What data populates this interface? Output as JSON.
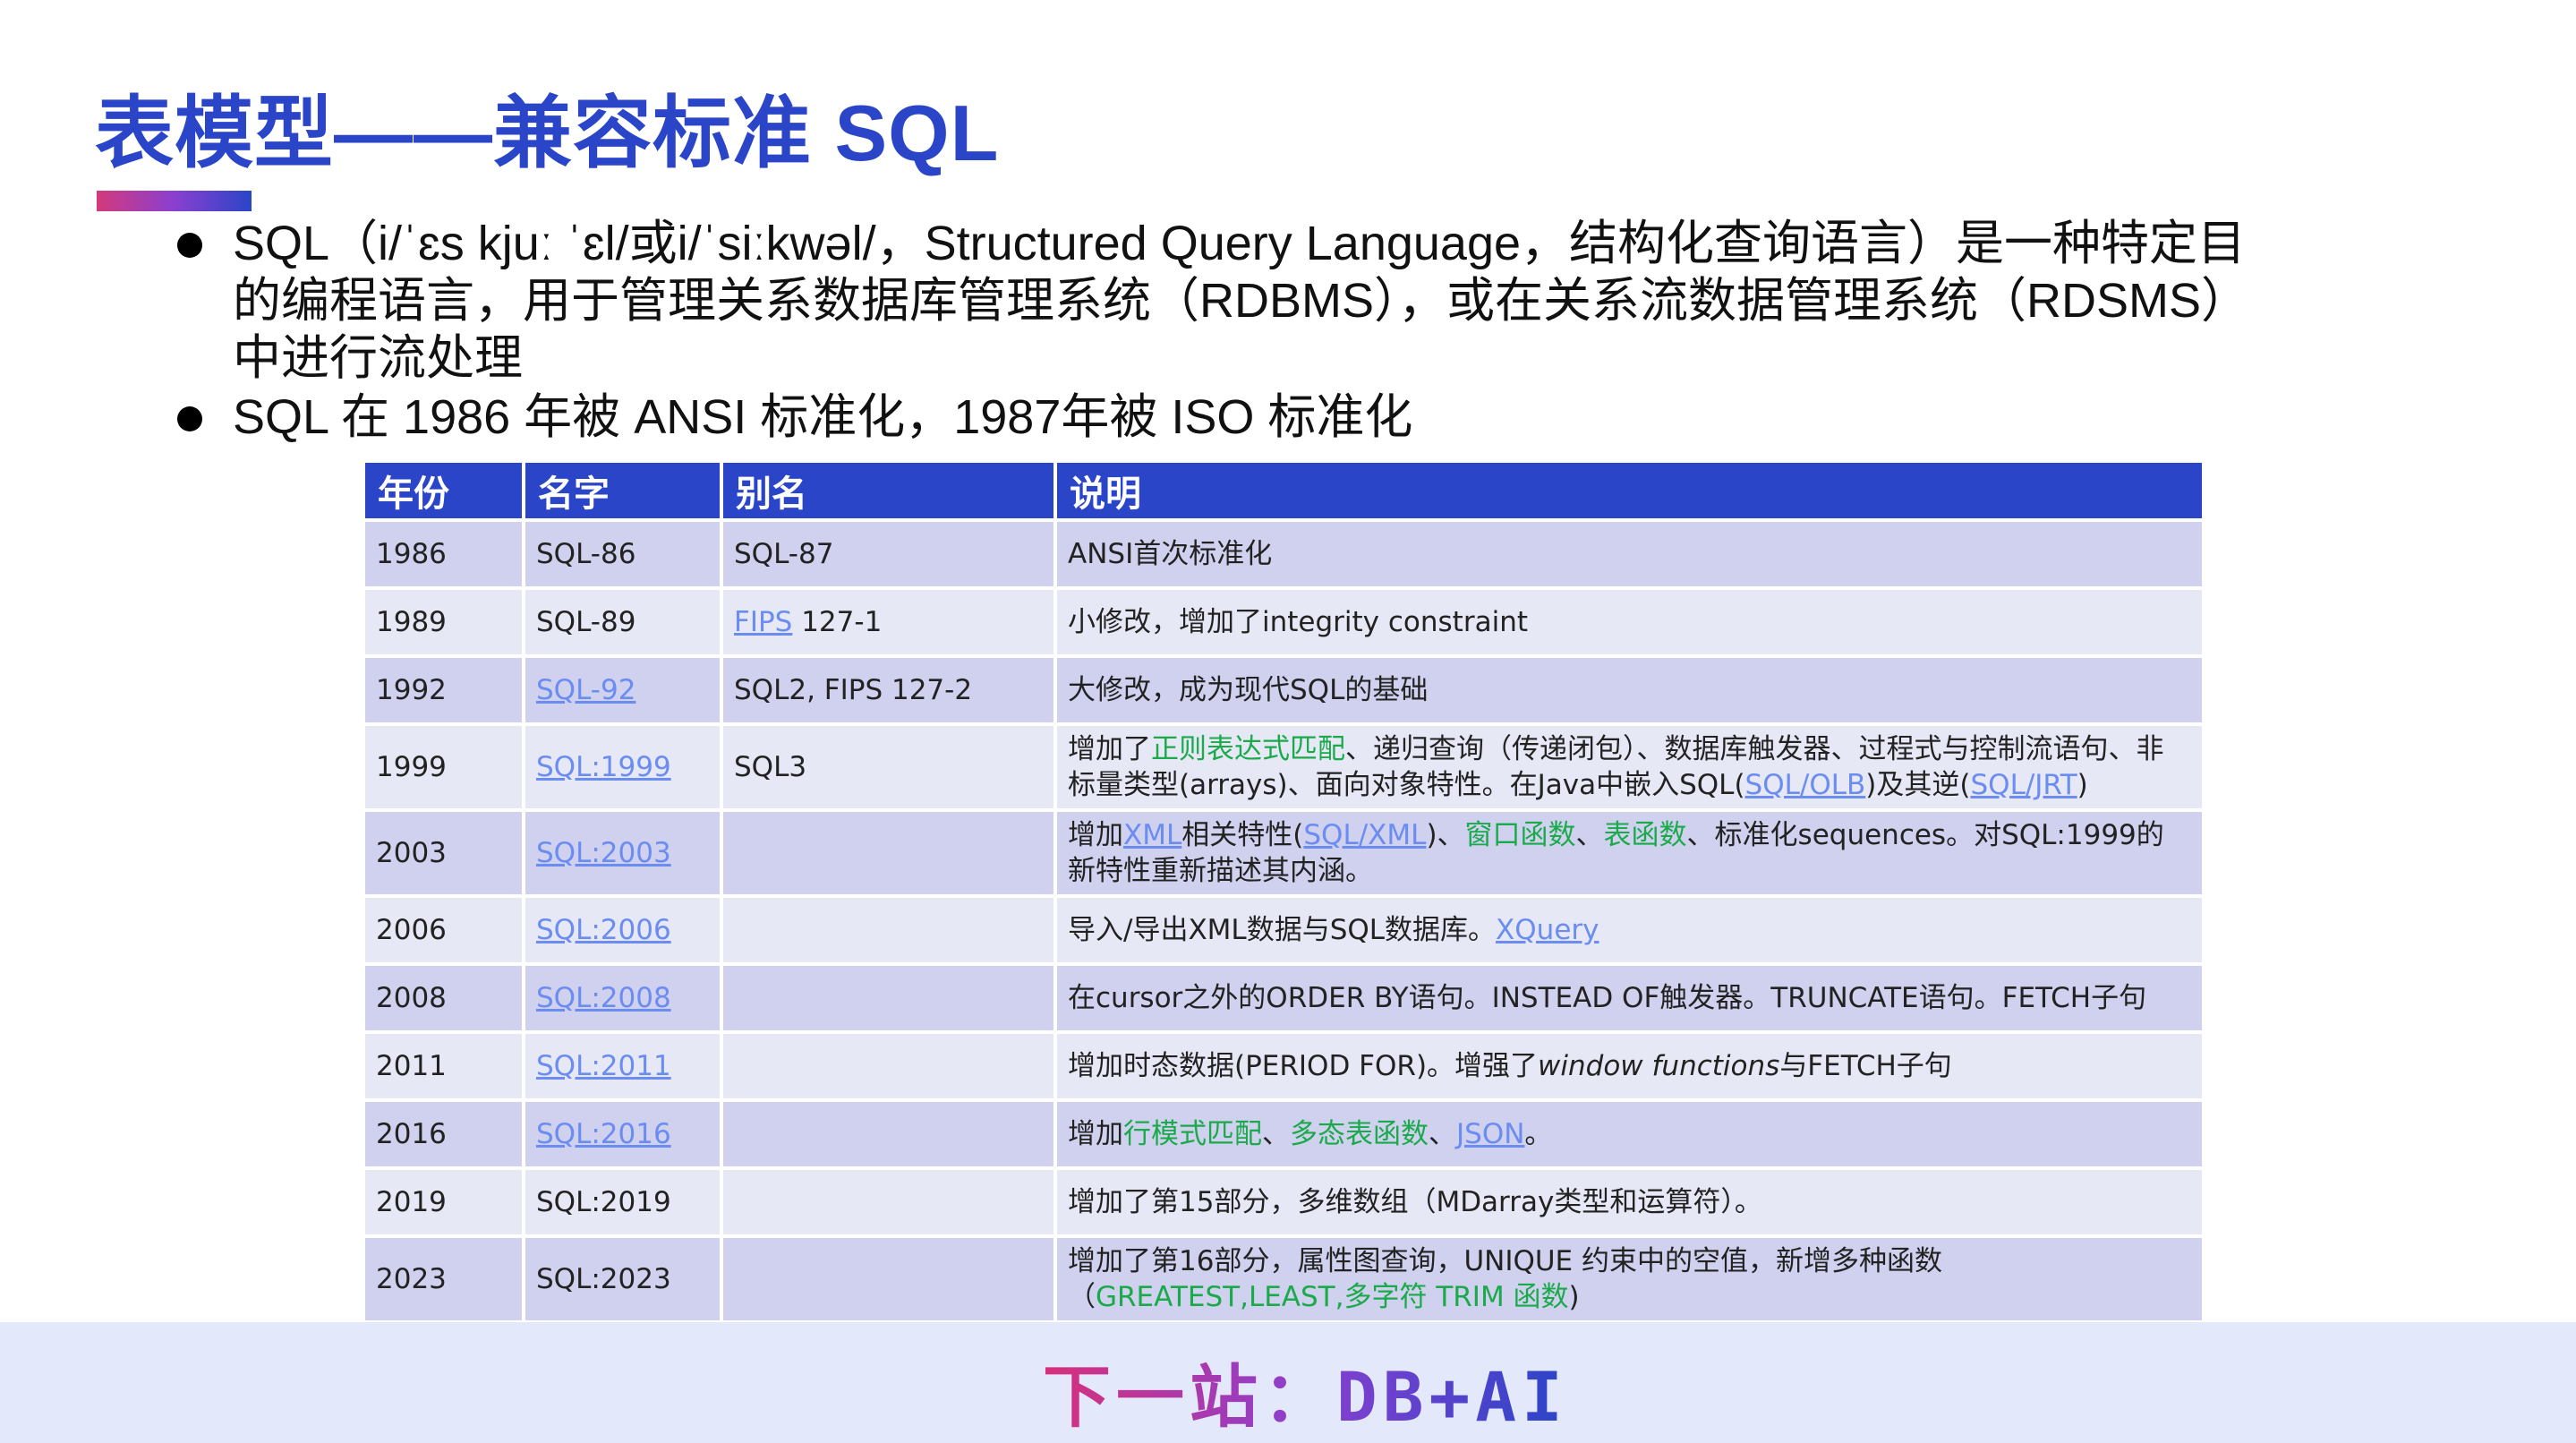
{
  "title": "表模型——兼容标准 SQL",
  "bullets": [
    "SQL（i/ˈɛs kjuː ˈɛl/或i/ˈsiːkwəl/，Structured Query Language，结构化查询语言）是一种特定目的编程语言，用于管理关系数据库管理系统（RDBMS），或在关系流数据管理系统（RDSMS）中进行流处理",
    "SQL 在 1986 年被 ANSI 标准化，1987年被 ISO 标准化"
  ],
  "table": {
    "headers": [
      "年份",
      "名字",
      "别名",
      "说明"
    ],
    "rows": [
      {
        "year": "1986",
        "name": [
          {
            "t": "SQL-86"
          }
        ],
        "alias": [
          {
            "t": "SQL-87"
          }
        ],
        "desc": [
          {
            "t": "ANSI首次标准化"
          }
        ]
      },
      {
        "year": "1989",
        "name": [
          {
            "t": "SQL-89"
          }
        ],
        "alias": [
          {
            "t": "FIPS",
            "s": "link"
          },
          {
            "t": " 127-1"
          }
        ],
        "desc": [
          {
            "t": "小修改，增加了integrity constraint"
          }
        ]
      },
      {
        "year": "1992",
        "name": [
          {
            "t": "SQL-92",
            "s": "link"
          }
        ],
        "alias": [
          {
            "t": "SQL2, FIPS 127-2"
          }
        ],
        "desc": [
          {
            "t": "大修改，成为现代SQL的基础"
          }
        ]
      },
      {
        "year": "1999",
        "name": [
          {
            "t": "SQL:1999",
            "s": "link"
          }
        ],
        "alias": [
          {
            "t": "SQL3"
          }
        ],
        "desc": [
          {
            "t": "增加了"
          },
          {
            "t": "正则表达式匹配",
            "s": "green"
          },
          {
            "t": "、递归查询（传递闭包）、数据库触发器、过程式与控制流语句、非标量类型(arrays)、面向对象特性。在Java中嵌入SQL("
          },
          {
            "t": "SQL/OLB",
            "s": "link"
          },
          {
            "t": ")及其逆("
          },
          {
            "t": "SQL/JRT",
            "s": "link"
          },
          {
            "t": ")"
          }
        ]
      },
      {
        "year": "2003",
        "name": [
          {
            "t": "SQL:2003",
            "s": "link"
          }
        ],
        "alias": [],
        "desc": [
          {
            "t": "增加"
          },
          {
            "t": "XML",
            "s": "link"
          },
          {
            "t": "相关特性("
          },
          {
            "t": "SQL/XML",
            "s": "link"
          },
          {
            "t": ")、"
          },
          {
            "t": "窗口函数",
            "s": "green"
          },
          {
            "t": "、"
          },
          {
            "t": "表函数",
            "s": "green"
          },
          {
            "t": "、标准化sequences。对SQL:1999的新特性重新描述其内涵。"
          }
        ]
      },
      {
        "year": "2006",
        "name": [
          {
            "t": "SQL:2006",
            "s": "link"
          }
        ],
        "alias": [],
        "desc": [
          {
            "t": "导入/导出XML数据与SQL数据库。"
          },
          {
            "t": "XQuery",
            "s": "link"
          }
        ]
      },
      {
        "year": "2008",
        "name": [
          {
            "t": "SQL:2008",
            "s": "link"
          }
        ],
        "alias": [],
        "desc": [
          {
            "t": "在cursor之外的ORDER BY语句。INSTEAD OF触发器。TRUNCATE语句。FETCH子句"
          }
        ]
      },
      {
        "year": "2011",
        "name": [
          {
            "t": "SQL:2011",
            "s": "link"
          }
        ],
        "alias": [],
        "desc": [
          {
            "t": "增加时态数据(PERIOD FOR)。增强了"
          },
          {
            "t": "window functions",
            "s": "italic"
          },
          {
            "t": "与FETCH子句"
          }
        ]
      },
      {
        "year": "2016",
        "name": [
          {
            "t": "SQL:2016",
            "s": "link"
          }
        ],
        "alias": [],
        "desc": [
          {
            "t": "增加"
          },
          {
            "t": "行模式匹配",
            "s": "green"
          },
          {
            "t": "、"
          },
          {
            "t": "多态表函数",
            "s": "green"
          },
          {
            "t": "、"
          },
          {
            "t": "JSON",
            "s": "link"
          },
          {
            "t": "。"
          }
        ]
      },
      {
        "year": "2019",
        "name": [
          {
            "t": "SQL:2019"
          }
        ],
        "alias": [],
        "desc": [
          {
            "t": "增加了第15部分，多维数组（MDarray类型和运算符）。"
          }
        ]
      },
      {
        "year": "2023",
        "name": [
          {
            "t": "SQL:2023"
          }
        ],
        "alias": [],
        "desc": [
          {
            "t": "增加了第16部分，属性图查询，UNIQUE 约束中的空值，新增多种函数（"
          },
          {
            "t": "GREATEST,LEAST,多字符 TRIM 函数",
            "s": "green"
          },
          {
            "t": ")"
          }
        ]
      }
    ]
  },
  "footer": {
    "text": "下一站：DB+AI"
  },
  "colors": {
    "accent": "#2a45c8",
    "link": "#6b8cf0",
    "highlight": "#1aaa4a",
    "row_odd": "#cfd1ee",
    "row_even": "#e6e8f5",
    "footer_bg": "#e3e8fb"
  }
}
